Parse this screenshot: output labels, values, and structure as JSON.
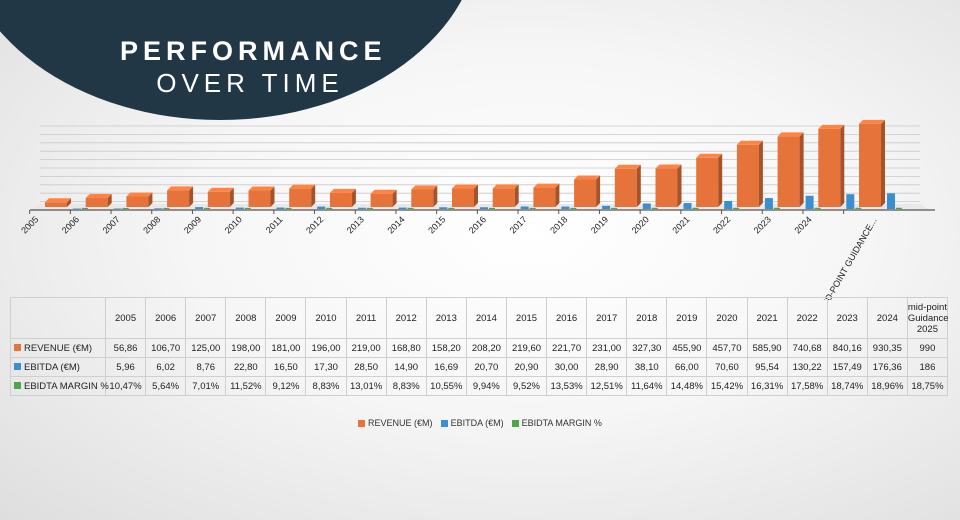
{
  "title": {
    "line1": "PERFORMANCE",
    "line2": "OVER TIME"
  },
  "colors": {
    "revenue": "#e6733a",
    "ebitda": "#3b8fd1",
    "margin": "#4fa64a",
    "title_bg": "#213746"
  },
  "chart_data": {
    "type": "bar",
    "categories": [
      "2005",
      "2006",
      "2007",
      "2008",
      "2009",
      "2010",
      "2011",
      "2012",
      "2013",
      "2014",
      "2015",
      "2016",
      "2017",
      "2018",
      "2019",
      "2020",
      "2021",
      "2022",
      "2023",
      "2024",
      "MID-POINT GUIDANCE..."
    ],
    "series": [
      {
        "name": "REVENUE (€M)",
        "values": [
          56.86,
          106.7,
          125.0,
          198.0,
          181.0,
          196.0,
          219.0,
          168.8,
          158.2,
          208.2,
          219.6,
          221.7,
          231.0,
          327.3,
          455.9,
          457.7,
          585.9,
          740.68,
          840.16,
          930.35,
          990
        ]
      },
      {
        "name": "EBITDA (€M)",
        "values": [
          5.96,
          6.02,
          8.76,
          22.8,
          16.5,
          17.3,
          28.5,
          14.9,
          16.69,
          20.7,
          20.9,
          30.0,
          28.9,
          38.1,
          66.0,
          70.6,
          95.54,
          130.22,
          157.49,
          176.36,
          186
        ]
      },
      {
        "name": "EBIDTA MARGIN %",
        "values": [
          10.47,
          5.64,
          7.01,
          11.52,
          9.12,
          8.83,
          13.01,
          8.83,
          10.55,
          9.94,
          9.52,
          13.53,
          12.51,
          11.64,
          14.48,
          15.42,
          16.31,
          17.58,
          18.74,
          18.96,
          18.75
        ]
      }
    ],
    "ylim": [
      0,
      1000
    ],
    "grid": true,
    "legend": "bottom"
  },
  "table": {
    "headers": [
      "2005",
      "2006",
      "2007",
      "2008",
      "2009",
      "2010",
      "2011",
      "2012",
      "2013",
      "2014",
      "2015",
      "2016",
      "2017",
      "2018",
      "2019",
      "2020",
      "2021",
      "2022",
      "2023",
      "2024",
      "mid-point Guidance 2025"
    ],
    "rows": [
      {
        "label": "REVENUE (€M)",
        "cells": [
          "56,86",
          "106,70",
          "125,00",
          "198,00",
          "181,00",
          "196,00",
          "219,00",
          "168,80",
          "158,20",
          "208,20",
          "219,60",
          "221,70",
          "231,00",
          "327,30",
          "455,90",
          "457,70",
          "585,90",
          "740,68",
          "840,16",
          "930,35",
          "990"
        ]
      },
      {
        "label": "EBITDA (€M)",
        "cells": [
          "5,96",
          "6,02",
          "8,76",
          "22,80",
          "16,50",
          "17,30",
          "28,50",
          "14,90",
          "16,69",
          "20,70",
          "20,90",
          "30,00",
          "28,90",
          "38,10",
          "66,00",
          "70,60",
          "95,54",
          "130,22",
          "157,49",
          "176,36",
          "186"
        ]
      },
      {
        "label": "EBIDTA MARGIN %",
        "cells": [
          "10,47%",
          "5,64%",
          "7,01%",
          "11,52%",
          "9,12%",
          "8,83%",
          "13,01%",
          "8,83%",
          "10,55%",
          "9,94%",
          "9,52%",
          "13,53%",
          "12,51%",
          "11,64%",
          "14,48%",
          "15,42%",
          "16,31%",
          "17,58%",
          "18,74%",
          "18,96%",
          "18,75%"
        ]
      }
    ]
  },
  "legend": [
    "REVENUE (€M)",
    "EBITDA (€M)",
    "EBIDTA MARGIN %"
  ]
}
